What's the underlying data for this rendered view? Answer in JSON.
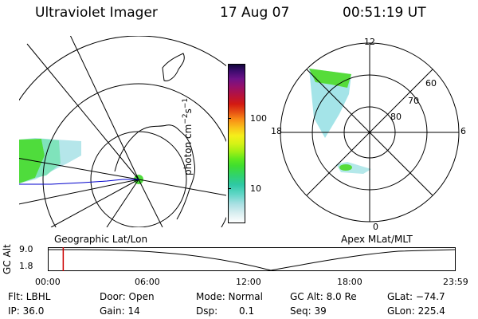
{
  "header": {
    "instrument": "Ultraviolet Imager",
    "date": "17 Aug 07",
    "time": "00:51:19 UT"
  },
  "colorbar": {
    "unit_prefix": "photon cm",
    "unit_exp1": "−2",
    "unit_mid": "s",
    "unit_exp2": "−1",
    "ticks": [
      "100",
      "10"
    ]
  },
  "geo_panel": {
    "label": "Geographic Lat/Lon"
  },
  "apex_panel": {
    "label": "Apex MLat/MLT",
    "mlt_labels": {
      "top": "12",
      "left": "18",
      "right": "6",
      "bottom": "0"
    },
    "lat_labels": [
      "60",
      "70",
      "80"
    ]
  },
  "altitude_plot": {
    "ylabel": "GC Alt",
    "yticks": [
      "9.0",
      "1.8"
    ],
    "xticks": [
      "00:00",
      "06:00",
      "12:00",
      "18:00",
      "23:59"
    ],
    "current_time_fraction": 0.036
  },
  "footer": {
    "flt": "Flt: LBHL",
    "ip": "IP: 36.0",
    "door": "Door: Open",
    "gain": "Gain: 14",
    "mode": "Mode: Normal",
    "dsp": "Dsp:",
    "dsp_val": "0.1",
    "gcalt": "GC Alt: 8.0 Re",
    "seq": "Seq: 39",
    "glat": "GLat: −74.7",
    "glon": "GLon: 225.4"
  },
  "colors": {
    "coast": "#0000cc",
    "marker": "#cc0000",
    "grid": "#000000"
  }
}
